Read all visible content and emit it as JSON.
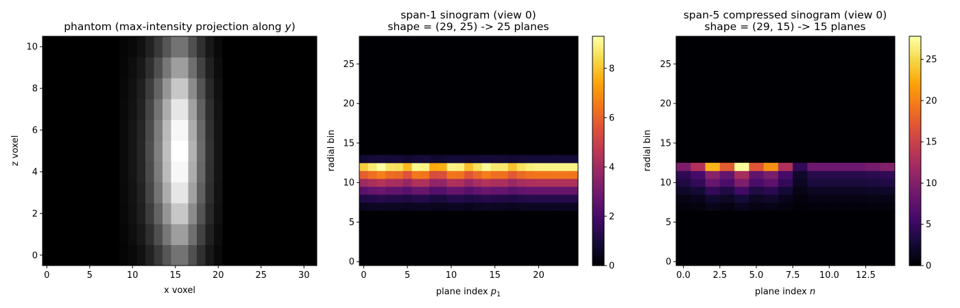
{
  "chart_data": [
    {
      "type": "heatmap",
      "title": "phantom (max-intensity projection along y)",
      "title_parts": {
        "main": "phantom (max-intensity projection along ",
        "var": "y",
        "end": ")"
      },
      "xlabel": "x voxel",
      "ylabel": "z voxel",
      "colormap": "gray",
      "xlim": [
        -0.5,
        31.5
      ],
      "ylim": [
        -0.5,
        10.5
      ],
      "xticks": [
        0,
        5,
        10,
        15,
        20,
        25,
        30
      ],
      "yticks": [
        0,
        2,
        4,
        6,
        8,
        10
      ],
      "column_profile": {
        "x": [
          9,
          10,
          11,
          12,
          13,
          14,
          15,
          16,
          17,
          18,
          19,
          20
        ],
        "values": [
          0.04,
          0.08,
          0.15,
          0.3,
          0.5,
          0.75,
          1.0,
          1.0,
          0.7,
          0.42,
          0.2,
          0.08
        ]
      },
      "row_profile": {
        "z": [
          0,
          1,
          2,
          3,
          4,
          5,
          6,
          7,
          8,
          9,
          10
        ],
        "values": [
          0.45,
          0.62,
          0.78,
          0.9,
          0.97,
          1.0,
          0.97,
          0.9,
          0.78,
          0.62,
          0.45
        ]
      }
    },
    {
      "type": "heatmap",
      "title_line1": "span-1 sinogram (view 0)",
      "title_line2": "shape = (29, 25) -> 25 planes",
      "xlabel": "plane index",
      "xlabel_sub": "p",
      "xlabel_subscript": "1",
      "ylabel": "radial bin",
      "colormap": "inferno",
      "xlim": [
        -0.5,
        24.5
      ],
      "ylim": [
        -0.5,
        28.5
      ],
      "xticks": [
        0,
        5,
        10,
        15,
        20
      ],
      "yticks": [
        0,
        5,
        10,
        15,
        20,
        25
      ],
      "colorbar": {
        "min": 0,
        "max": 9.3,
        "ticks": [
          0,
          2,
          4,
          6,
          8
        ]
      },
      "radial_bins": [
        7,
        8,
        9,
        10,
        11,
        12,
        13
      ],
      "plane_values_at_peak_bin_12": [
        8.2,
        8.8,
        9.3,
        8.7,
        8.6,
        7.8,
        9.1,
        9.0,
        7.5,
        7.6,
        9.0,
        8.9,
        7.9,
        8.6,
        9.2,
        8.8,
        8.8,
        8.0,
        8.6,
        8.9,
        9.0,
        9.0,
        9.0,
        9.0,
        9.0
      ],
      "radial_profile": {
        "bins": [
          7,
          8,
          9,
          10,
          11,
          12,
          13
        ],
        "fraction_of_peak": [
          0.06,
          0.14,
          0.3,
          0.48,
          0.72,
          1.0,
          0.1
        ]
      }
    },
    {
      "type": "heatmap",
      "title_line1": "span-5 compressed sinogram (view 0)",
      "title_line2": "shape = (29, 15) -> 15 planes",
      "xlabel": "plane index",
      "xlabel_var": "n",
      "ylabel": "radial bin",
      "colormap": "inferno",
      "xlim": [
        -0.5,
        14.5
      ],
      "ylim": [
        -0.5,
        28.5
      ],
      "xticks": [
        "0.0",
        "2.5",
        "5.0",
        "7.5",
        "10.0",
        "12.5"
      ],
      "xtick_values": [
        0,
        2.5,
        5,
        7.5,
        10,
        12.5
      ],
      "yticks": [
        0,
        5,
        10,
        15,
        20,
        25
      ],
      "colorbar": {
        "min": 0,
        "max": 27.8,
        "ticks": [
          0,
          5,
          10,
          15,
          20,
          25
        ]
      },
      "radial_bins": [
        7,
        8,
        9,
        10,
        11,
        12
      ],
      "plane_values_at_peak_bin_12": [
        9.5,
        13,
        23,
        17.5,
        27.5,
        17,
        21,
        13,
        4.5,
        8.5,
        8.5,
        8.5,
        8.5,
        9,
        10
      ],
      "radial_profile": {
        "bins": [
          7,
          8,
          9,
          10,
          11,
          12
        ],
        "fraction_of_peak": [
          0.05,
          0.1,
          0.2,
          0.35,
          0.45,
          1.0
        ]
      }
    }
  ]
}
